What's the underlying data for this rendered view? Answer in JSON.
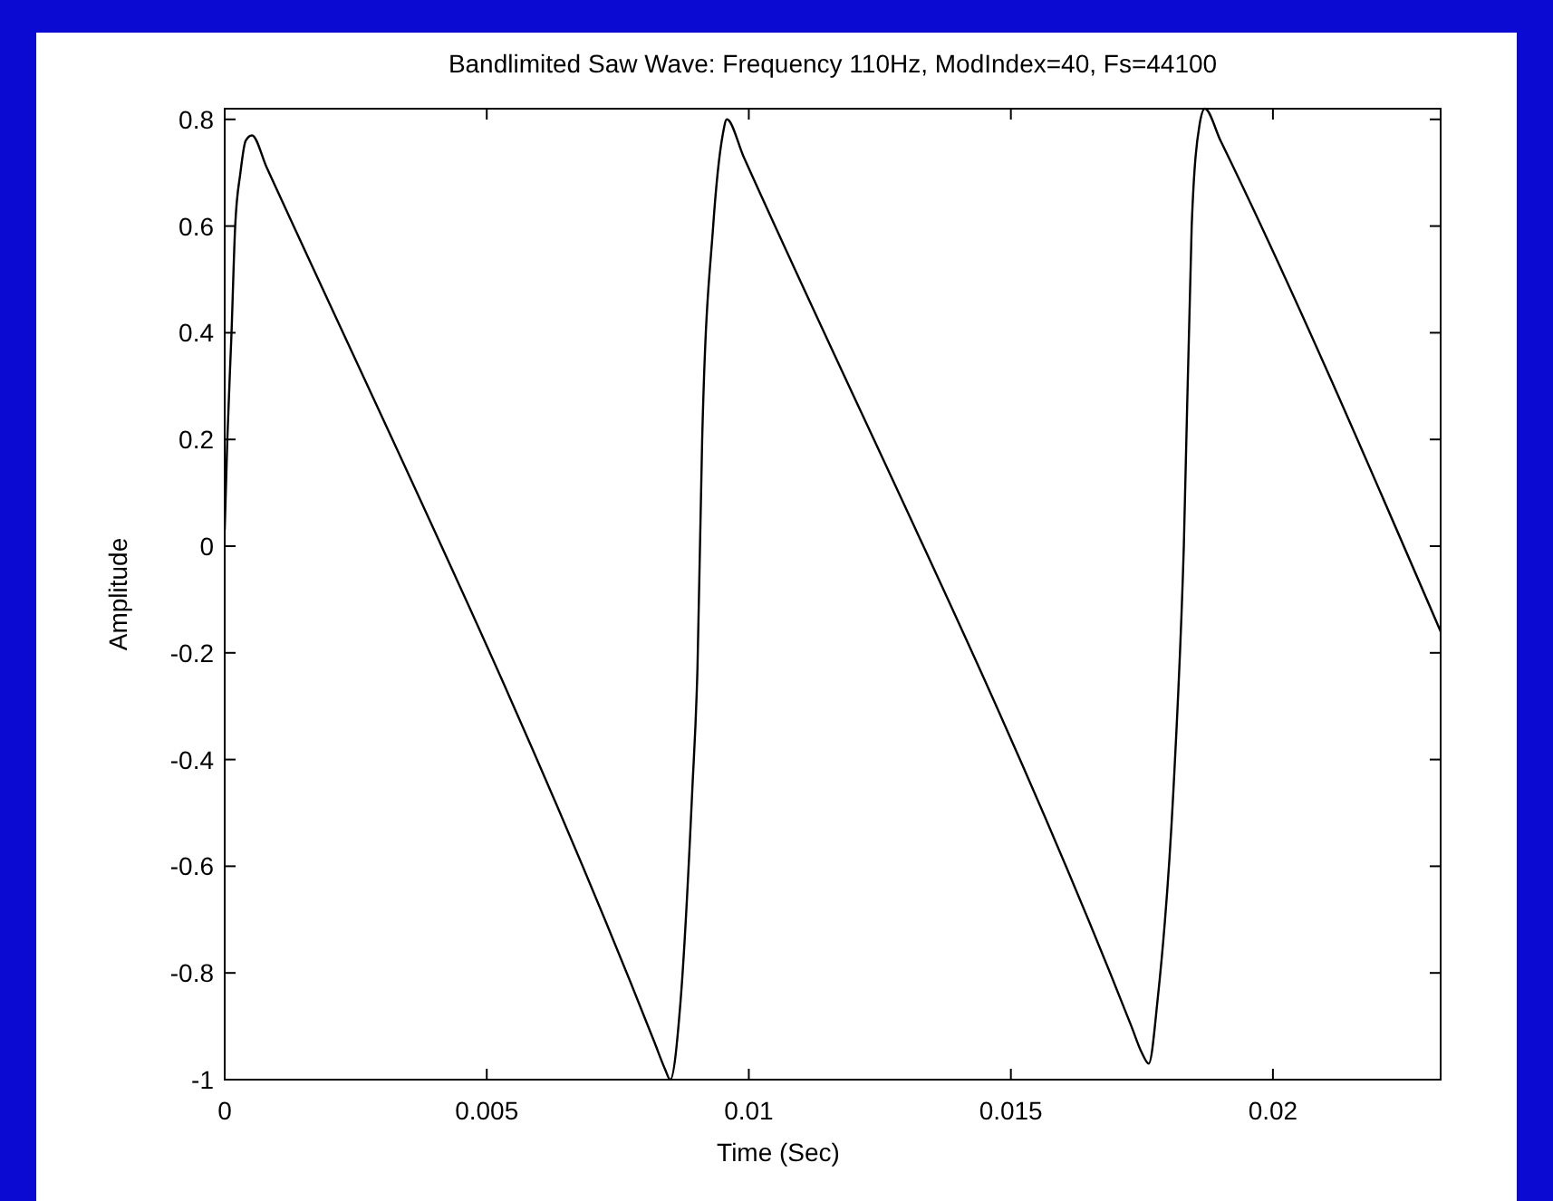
{
  "chart_data": {
    "type": "line",
    "title": "Bandlimited Saw Wave: Frequency 110Hz, ModIndex=40, Fs=44100",
    "xlabel": "Time (Sec)",
    "ylabel": "Amplitude",
    "xlim": [
      0,
      0.0232
    ],
    "ylim": [
      -1,
      0.82
    ],
    "xticks": [
      0,
      0.005,
      0.01,
      0.015,
      0.02
    ],
    "yticks": [
      -1,
      -0.8,
      -0.6,
      -0.4,
      -0.2,
      0,
      0.2,
      0.4,
      0.6,
      0.8
    ],
    "grid": false,
    "marker": "none",
    "line_style": "solid",
    "series": [
      {
        "color": "#000000",
        "x": [
          0,
          5e-05,
          0.00013,
          0.0002,
          0.0003,
          0.0004,
          0.00052,
          0.0008,
          0.0082,
          0.0084,
          0.0085,
          0.0087,
          0.00892,
          0.00902,
          0.00911,
          0.00932,
          0.0095,
          0.00958,
          0.0099,
          0.0173,
          0.0175,
          0.01763,
          0.0178,
          0.0181,
          0.0183,
          0.01845,
          0.0186,
          0.0187,
          0.019,
          0.0232
        ],
        "values": [
          0.03,
          0.2,
          0.4,
          0.6,
          0.7,
          0.76,
          0.77,
          0.71,
          -0.93,
          -0.98,
          -1,
          -0.85,
          -0.46,
          -0.23,
          0.2,
          0.6,
          0.77,
          0.8,
          0.73,
          -0.9,
          -0.95,
          -0.97,
          -0.85,
          -0.46,
          0,
          0.6,
          0.79,
          0.82,
          0.76,
          -0.16
        ]
      }
    ]
  }
}
